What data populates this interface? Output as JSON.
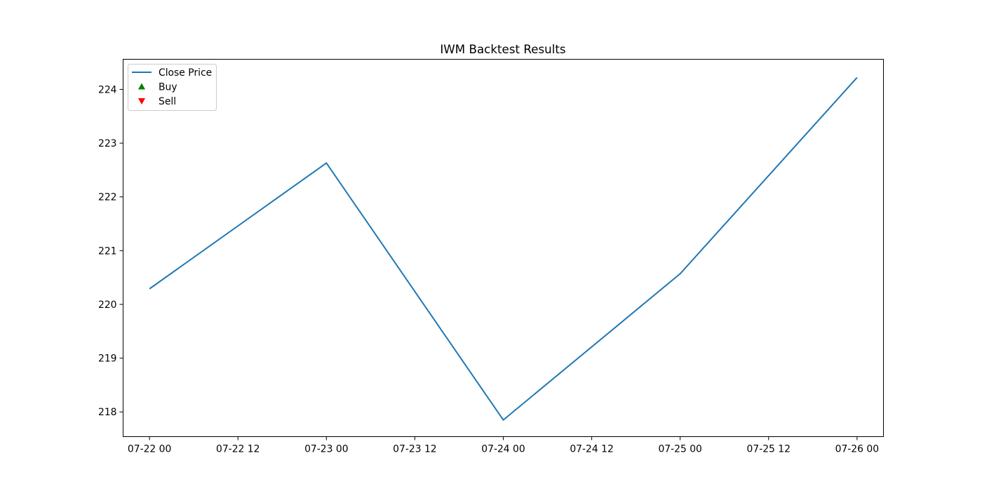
{
  "chart_data": {
    "type": "line",
    "title": "IWM Backtest Results",
    "xlabel": "",
    "ylabel": "",
    "x_tick_labels": [
      "07-22 00",
      "07-22 12",
      "07-23 00",
      "07-23 12",
      "07-24 00",
      "07-24 12",
      "07-25 00",
      "07-25 12",
      "07-26 00"
    ],
    "y_tick_labels": [
      "218",
      "219",
      "220",
      "221",
      "222",
      "223",
      "224"
    ],
    "xlim": [
      "07-21 20:25",
      "07-26 03:35"
    ],
    "ylim": [
      217.54,
      224.56
    ],
    "grid": false,
    "legend_position": "top-left",
    "series": [
      {
        "name": "Close Price",
        "type": "line",
        "color": "#1f77b4",
        "x": [
          "07-22 00",
          "07-23 00",
          "07-24 00",
          "07-25 00",
          "07-26 00"
        ],
        "values": [
          220.29,
          222.63,
          217.85,
          220.57,
          224.22
        ]
      },
      {
        "name": "Buy",
        "type": "scatter",
        "marker": "triangle-up",
        "color": "#008000",
        "x": [],
        "values": []
      },
      {
        "name": "Sell",
        "type": "scatter",
        "marker": "triangle-down",
        "color": "#ff0000",
        "x": [],
        "values": []
      }
    ]
  }
}
